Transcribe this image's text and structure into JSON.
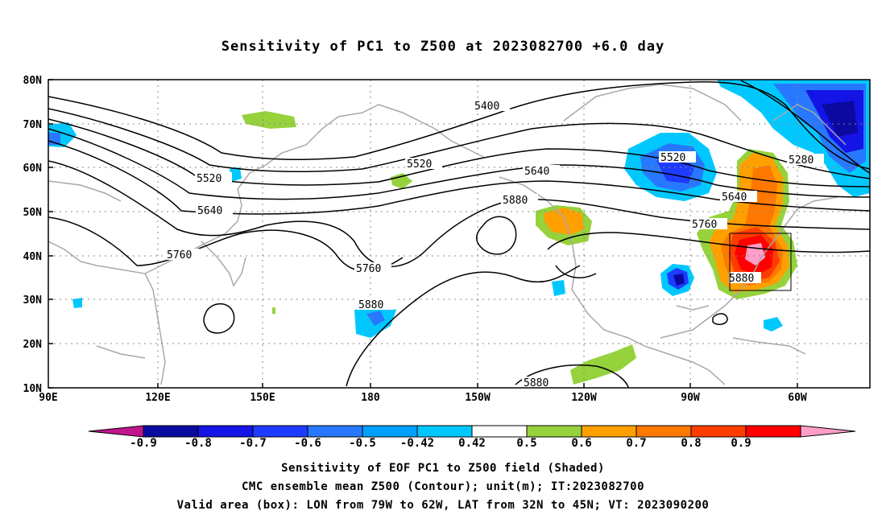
{
  "title": "Sensitivity of PC1 to Z500 at 2023082700 +6.0 day",
  "map": {
    "lat_labels": [
      "80N",
      "70N",
      "60N",
      "50N",
      "40N",
      "30N",
      "20N",
      "10N"
    ],
    "lon_labels": [
      "90E",
      "120E",
      "150E",
      "180",
      "150W",
      "120W",
      "90W",
      "60W"
    ],
    "contour_labels": [
      "5400",
      "5520",
      "5520",
      "5520",
      "5640",
      "5640",
      "5640",
      "5760",
      "5760",
      "5760",
      "5880",
      "5880",
      "5880",
      "5880",
      "5280"
    ],
    "box_area": {
      "lon_from": "79W",
      "lon_to": "62W",
      "lat_from": "32N",
      "lat_to": "45N"
    }
  },
  "colorbar": {
    "labels": [
      "-0.9",
      "-0.8",
      "-0.7",
      "-0.6",
      "-0.5",
      "-0.42",
      "0.42",
      "0.5",
      "0.6",
      "0.7",
      "0.8",
      "0.9"
    ],
    "colors": [
      "#c0148c",
      "#0a0aa0",
      "#1414e6",
      "#1e3cff",
      "#2878ff",
      "#00a0ff",
      "#00c8ff",
      "#ffffff",
      "#96d23c",
      "#ffa000",
      "#ff7800",
      "#ff3c00",
      "#ff0000",
      "#ff9ec8"
    ]
  },
  "captions": {
    "line1": "Sensitivity of EOF PC1 to Z500 field (Shaded)",
    "line2": "CMC ensemble mean Z500 (Contour); unit(m); IT:2023082700",
    "line3": "Valid area (box): LON from 79W to 62W, LAT from 32N to 45N; VT: 2023090200"
  }
}
